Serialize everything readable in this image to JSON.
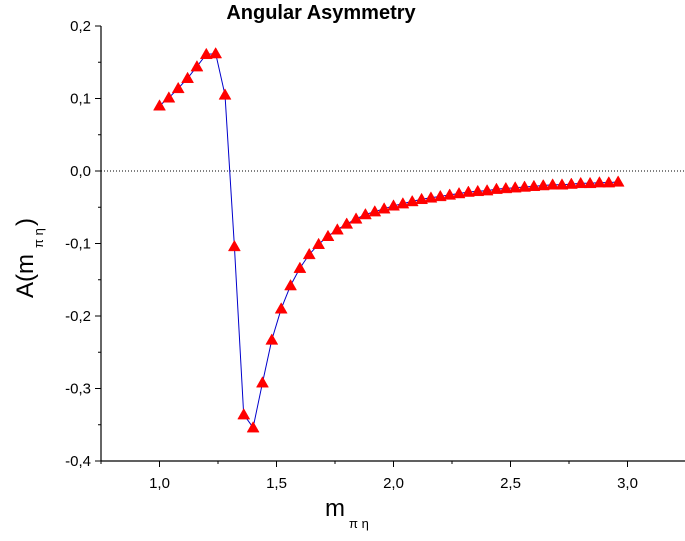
{
  "chart_data": {
    "type": "line",
    "title": "Angular Asymmetry",
    "xlabel": {
      "main": "m",
      "sub": "π η"
    },
    "ylabel": {
      "main": "A(m",
      "sub": "π η",
      "close": ")"
    },
    "xlim": [
      0.75,
      3.25
    ],
    "ylim": [
      -0.4,
      0.2
    ],
    "xticks": [
      1.0,
      1.5,
      2.0,
      2.5,
      3.0
    ],
    "xtick_labels": [
      "1,0",
      "1,5",
      "2,0",
      "2,5",
      "3,0"
    ],
    "yticks": [
      -0.4,
      -0.3,
      -0.2,
      -0.1,
      0.0,
      0.1,
      0.2
    ],
    "ytick_labels": [
      "-0,4",
      "-0,3",
      "-0,2",
      "-0,1",
      "0,0",
      "0,1",
      "0,2"
    ],
    "reference_line": {
      "y": 0.0,
      "style": "dotted"
    },
    "grid": false,
    "legend": "none",
    "series": [
      {
        "marker": "triangle",
        "marker_color": "#ff0000",
        "line_color": "#0000cc",
        "x": [
          1.0,
          1.04,
          1.08,
          1.12,
          1.16,
          1.2,
          1.24,
          1.28,
          1.32,
          1.36,
          1.4,
          1.44,
          1.48,
          1.52,
          1.56,
          1.6,
          1.64,
          1.68,
          1.72,
          1.76,
          1.8,
          1.84,
          1.88,
          1.92,
          1.96,
          2.0,
          2.04,
          2.08,
          2.12,
          2.16,
          2.2,
          2.24,
          2.28,
          2.32,
          2.36,
          2.4,
          2.44,
          2.48,
          2.52,
          2.56,
          2.6,
          2.64,
          2.68,
          2.72,
          2.76,
          2.8,
          2.84,
          2.88,
          2.92,
          2.96
        ],
        "y": [
          0.09,
          0.101,
          0.114,
          0.128,
          0.144,
          0.161,
          0.162,
          0.105,
          -0.104,
          -0.336,
          -0.354,
          -0.292,
          -0.233,
          -0.19,
          -0.158,
          -0.134,
          -0.115,
          -0.101,
          -0.09,
          -0.081,
          -0.073,
          -0.066,
          -0.06,
          -0.056,
          -0.052,
          -0.048,
          -0.045,
          -0.042,
          -0.039,
          -0.037,
          -0.035,
          -0.033,
          -0.031,
          -0.029,
          -0.028,
          -0.027,
          -0.025,
          -0.024,
          -0.023,
          -0.022,
          -0.021,
          -0.02,
          -0.019,
          -0.019,
          -0.018,
          -0.017,
          -0.017,
          -0.016,
          -0.016,
          -0.015
        ]
      }
    ]
  }
}
